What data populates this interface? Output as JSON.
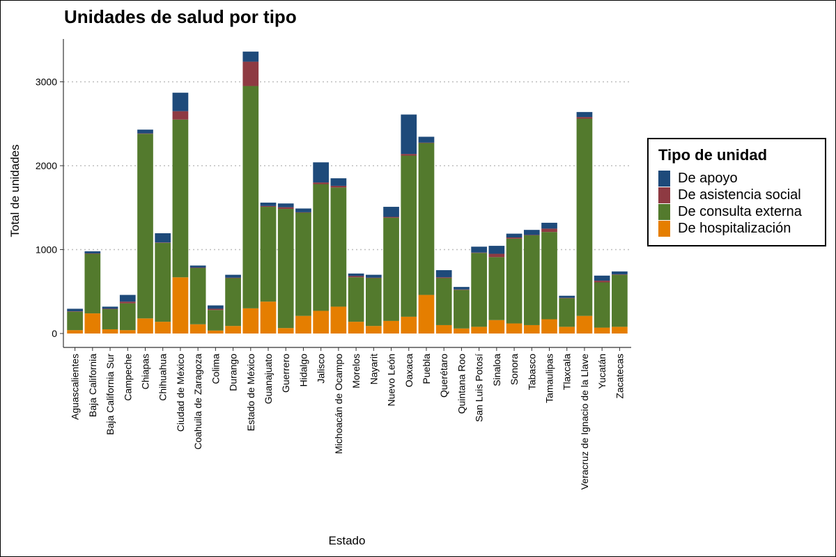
{
  "chart_data": {
    "type": "bar",
    "stacked": true,
    "title": "Unidades de salud por tipo",
    "xlabel": "Estado",
    "ylabel": "Total de unidades",
    "ylim": [
      0,
      3500
    ],
    "yticks": [
      0,
      1000,
      2000,
      3000
    ],
    "grid": "horizontal dotted",
    "legend": {
      "title": "Tipo de unidad",
      "position": "right"
    },
    "categories": [
      "Aguascalientes",
      "Baja California",
      "Baja California Sur",
      "Campeche",
      "Chiapas",
      "Chihuahua",
      "Ciudad de México",
      "Coahuila de Zaragoza",
      "Colima",
      "Durango",
      "Estado de México",
      "Guanajuato",
      "Guerrero",
      "Hidalgo",
      "Jalisco",
      "Michoacán de Ocampo",
      "Morelos",
      "Nayarit",
      "Nuevo León",
      "Oaxaca",
      "Puebla",
      "Querétaro",
      "Quintana Roo",
      "San Luis Potosí",
      "Sinaloa",
      "Sonora",
      "Tabasco",
      "Tamaulipas",
      "Tlaxcala",
      "Veracruz de Ignacio de la Llave",
      "Yucatán",
      "Zacatecas"
    ],
    "series": [
      {
        "name": "De hospitalización",
        "color": "#E57E00",
        "values": [
          40,
          240,
          50,
          40,
          180,
          140,
          670,
          110,
          35,
          90,
          300,
          380,
          65,
          210,
          270,
          320,
          140,
          90,
          150,
          200,
          460,
          100,
          60,
          80,
          160,
          120,
          100,
          170,
          80,
          210,
          70,
          80
        ]
      },
      {
        "name": "De consulta externa",
        "color": "#537A2D",
        "values": [
          220,
          710,
          240,
          320,
          2200,
          940,
          1880,
          670,
          245,
          570,
          2650,
          1130,
          1420,
          1230,
          1510,
          1420,
          530,
          570,
          1230,
          1920,
          1810,
          560,
          460,
          880,
          750,
          1010,
          1070,
          1040,
          340,
          2350,
          540,
          620
        ]
      },
      {
        "name": "De asistencia social",
        "color": "#8E3A42",
        "values": [
          5,
          5,
          5,
          20,
          5,
          5,
          100,
          5,
          15,
          5,
          290,
          10,
          20,
          5,
          20,
          20,
          15,
          5,
          10,
          20,
          5,
          10,
          5,
          5,
          40,
          15,
          5,
          40,
          5,
          20,
          20,
          5
        ]
      },
      {
        "name": "De apoyo",
        "color": "#1E4A7A",
        "values": [
          30,
          25,
          25,
          80,
          45,
          110,
          220,
          25,
          40,
          35,
          120,
          40,
          45,
          45,
          240,
          90,
          30,
          35,
          120,
          470,
          70,
          85,
          30,
          70,
          95,
          45,
          60,
          70,
          25,
          60,
          60,
          35
        ]
      }
    ]
  }
}
